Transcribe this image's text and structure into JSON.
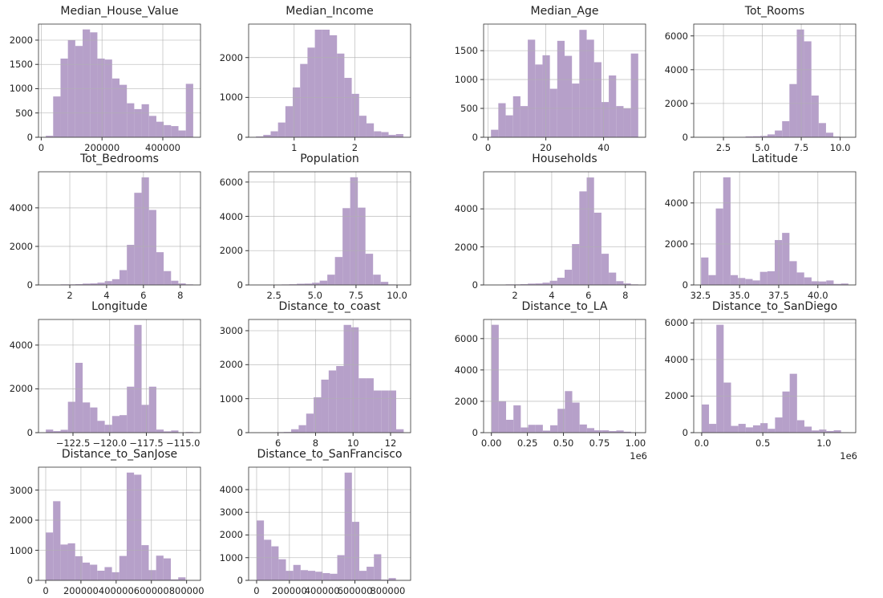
{
  "bar_color": "#b6a0c9",
  "chart_data": [
    {
      "type": "bar",
      "title": "Median_House_Value",
      "bin_range": [
        15000,
        500000
      ],
      "xlim": [
        -9000,
        524000
      ],
      "ylim": [
        0,
        2330
      ],
      "values": [
        30,
        840,
        1620,
        2000,
        1880,
        2220,
        2160,
        1620,
        1600,
        1210,
        1080,
        700,
        580,
        680,
        440,
        320,
        250,
        230,
        140,
        1100
      ],
      "xticks": [
        0,
        200000,
        400000
      ],
      "xtick_labels": [
        "0",
        "200000",
        "400000"
      ],
      "yticks": [
        0,
        500,
        1000,
        1500,
        2000
      ],
      "ytick_labels": [
        "0",
        "500",
        "1000",
        "1500",
        "2000"
      ],
      "grid": true
    },
    {
      "type": "bar",
      "title": "Median_Income",
      "bin_range": [
        0.37,
        2.8
      ],
      "xlim": [
        0.25,
        2.92
      ],
      "ylim": [
        0,
        2840
      ],
      "values": [
        20,
        60,
        150,
        370,
        780,
        1250,
        1840,
        2250,
        2700,
        2700,
        2560,
        2100,
        1490,
        1090,
        540,
        350,
        150,
        130,
        60,
        80
      ],
      "xticks": [
        1,
        2
      ],
      "xtick_labels": [
        "1",
        "2"
      ],
      "yticks": [
        0,
        1000,
        2000
      ],
      "ytick_labels": [
        "0",
        "1000",
        "2000"
      ],
      "grid": true
    },
    {
      "type": "bar",
      "title": "Median_Age",
      "bin_range": [
        1,
        52
      ],
      "xlim": [
        -1.55,
        54.55
      ],
      "ylim": [
        0,
        1960
      ],
      "values": [
        130,
        590,
        380,
        710,
        540,
        1690,
        1260,
        1420,
        840,
        1670,
        1410,
        930,
        1860,
        1690,
        1300,
        610,
        1070,
        540,
        500,
        1450
      ],
      "xticks": [
        0,
        20,
        40
      ],
      "xtick_labels": [
        "0",
        "20",
        "40"
      ],
      "yticks": [
        0,
        500,
        1000,
        1500
      ],
      "ytick_labels": [
        "0",
        "500",
        "1000",
        "1500"
      ],
      "grid": true
    },
    {
      "type": "bar",
      "title": "Tot_Rooms",
      "bin_range": [
        1.1,
        10.5
      ],
      "xlim": [
        0.59,
        11.0
      ],
      "ylim": [
        0,
        6700
      ],
      "values": [
        2,
        0,
        2,
        5,
        8,
        15,
        50,
        60,
        80,
        170,
        400,
        950,
        3150,
        6380,
        5680,
        2470,
        840,
        270,
        40,
        10
      ],
      "xticks": [
        2.5,
        5,
        7.5,
        10
      ],
      "xtick_labels": [
        "2.5",
        "5.0",
        "7.5",
        "10.0"
      ],
      "yticks": [
        0,
        2000,
        4000,
        6000
      ],
      "ytick_labels": [
        "0",
        "2000",
        "4000",
        "6000"
      ],
      "grid": true
    },
    {
      "type": "bar",
      "title": "Tot_Bedrooms",
      "bin_range": [
        0.7,
        8.7
      ],
      "xlim": [
        0.3,
        9.1
      ],
      "ylim": [
        0,
        5870
      ],
      "values": [
        2,
        0,
        30,
        30,
        40,
        70,
        80,
        120,
        200,
        300,
        770,
        2080,
        4780,
        5580,
        3890,
        1700,
        720,
        220,
        80,
        30
      ],
      "xticks": [
        2,
        4,
        6,
        8
      ],
      "xtick_labels": [
        "2",
        "4",
        "6",
        "8"
      ],
      "yticks": [
        0,
        2000,
        4000
      ],
      "ytick_labels": [
        "0",
        "2000",
        "4000"
      ],
      "grid": true
    },
    {
      "type": "bar",
      "title": "Population",
      "bin_range": [
        1.1,
        10.4
      ],
      "xlim": [
        0.95,
        10.83
      ],
      "ylim": [
        0,
        6600
      ],
      "values": [
        2,
        5,
        10,
        20,
        30,
        40,
        70,
        80,
        130,
        250,
        600,
        1630,
        4480,
        6280,
        4510,
        1820,
        600,
        180,
        30,
        5
      ],
      "xticks": [
        2.5,
        5,
        7.5,
        10
      ],
      "xtick_labels": [
        "2.5",
        "5.0",
        "7.5",
        "10.0"
      ],
      "yticks": [
        0,
        2000,
        4000,
        6000
      ],
      "ytick_labels": [
        "0",
        "2000",
        "4000",
        "6000"
      ],
      "grid": true
    },
    {
      "type": "bar",
      "title": "Households",
      "bin_range": [
        0.7,
        8.7
      ],
      "xlim": [
        0.3,
        9.1
      ],
      "ylim": [
        0,
        5950
      ],
      "values": [
        2,
        0,
        30,
        30,
        40,
        70,
        80,
        120,
        220,
        380,
        800,
        2150,
        4920,
        5650,
        3800,
        1640,
        650,
        200,
        80,
        30
      ],
      "xticks": [
        2,
        4,
        6,
        8
      ],
      "xtick_labels": [
        "2",
        "4",
        "6",
        "8"
      ],
      "yticks": [
        0,
        2000,
        4000
      ],
      "ytick_labels": [
        "0",
        "2000",
        "4000"
      ],
      "grid": true
    },
    {
      "type": "bar",
      "title": "Latitude",
      "bin_range": [
        32.54,
        41.95
      ],
      "xlim": [
        32.07,
        42.42
      ],
      "ylim": [
        0,
        5520
      ],
      "values": [
        1340,
        480,
        3730,
        5250,
        480,
        340,
        290,
        220,
        640,
        670,
        2190,
        2540,
        1160,
        610,
        370,
        180,
        170,
        220,
        50,
        70
      ],
      "xticks": [
        32.5,
        35,
        37.5,
        40
      ],
      "xtick_labels": [
        "32.5",
        "35.0",
        "37.5",
        "40.0"
      ],
      "yticks": [
        0,
        2000,
        4000
      ],
      "ytick_labels": [
        "0",
        "2000",
        "4000"
      ],
      "grid": true
    },
    {
      "type": "bar",
      "title": "Longitude",
      "bin_range": [
        -124.35,
        -114.31
      ],
      "xlim": [
        -124.85,
        -113.81
      ],
      "ylim": [
        0,
        5170
      ],
      "values": [
        140,
        70,
        130,
        1410,
        3190,
        1380,
        1150,
        540,
        360,
        760,
        800,
        2100,
        4920,
        1270,
        2100,
        140,
        60,
        100,
        10,
        30
      ],
      "xticks": [
        -122.5,
        -120,
        -117.5,
        -115
      ],
      "xtick_labels": [
        "−122.5",
        "−120.0",
        "−117.5",
        "−115.0"
      ],
      "yticks": [
        0,
        2000,
        4000
      ],
      "ytick_labels": [
        "0",
        "2000",
        "4000"
      ],
      "grid": true
    },
    {
      "type": "bar",
      "title": "Distance_to_coast",
      "bin_range": [
        4.7,
        12.7
      ],
      "xlim": [
        4.43,
        13.07
      ],
      "ylim": [
        0,
        3330
      ],
      "values": [
        1,
        0,
        2,
        15,
        20,
        100,
        220,
        560,
        1040,
        1560,
        1830,
        1960,
        3170,
        3100,
        1600,
        1600,
        1240,
        1240,
        1240,
        100
      ],
      "xticks": [
        6,
        8,
        10,
        12
      ],
      "xtick_labels": [
        "6",
        "8",
        "10",
        "12"
      ],
      "yticks": [
        0,
        1000,
        2000,
        3000
      ],
      "ytick_labels": [
        "0",
        "1000",
        "2000",
        "3000"
      ],
      "grid": true
    },
    {
      "type": "bar",
      "title": "Distance_to_LA",
      "bin_range": [
        0,
        1.02
      ],
      "xlim": [
        -0.054,
        1.07
      ],
      "ylim": [
        0,
        7220
      ],
      "values": [
        6880,
        2000,
        820,
        1740,
        330,
        500,
        500,
        130,
        470,
        1520,
        2650,
        1920,
        520,
        290,
        150,
        150,
        100,
        140,
        60,
        20
      ],
      "xticks": [
        0,
        0.25,
        0.5,
        0.75,
        1.0
      ],
      "xtick_labels": [
        "0.00",
        "0.25",
        "0.50",
        "0.75",
        "1.00"
      ],
      "x_offset_label": "1e6",
      "yticks": [
        0,
        2000,
        4000,
        6000
      ],
      "ytick_labels": [
        "0",
        "2000",
        "4000",
        "6000"
      ],
      "grid": true
    },
    {
      "type": "bar",
      "title": "Distance_to_SanDiego",
      "bin_range": [
        0,
        1.2
      ],
      "xlim": [
        -0.065,
        1.26
      ],
      "ylim": [
        0,
        6190
      ],
      "values": [
        1540,
        480,
        5900,
        2740,
        370,
        480,
        290,
        400,
        520,
        210,
        830,
        2250,
        3220,
        680,
        330,
        120,
        170,
        90,
        130,
        20
      ],
      "xticks": [
        0,
        0.5,
        1.0
      ],
      "xtick_labels": [
        "0.0",
        "0.5",
        "1.0"
      ],
      "x_offset_label": "1e6",
      "yticks": [
        0,
        2000,
        4000,
        6000
      ],
      "ytick_labels": [
        "0",
        "2000",
        "4000",
        "6000"
      ],
      "grid": true
    },
    {
      "type": "bar",
      "title": "Distance_to_SanJose",
      "bin_range": [
        0,
        836000
      ],
      "xlim": [
        -41000,
        879000
      ],
      "ylim": [
        0,
        3760
      ],
      "values": [
        1590,
        2630,
        1190,
        1230,
        800,
        590,
        520,
        320,
        440,
        270,
        810,
        3580,
        3510,
        1170,
        340,
        820,
        730,
        30,
        100,
        0
      ],
      "xticks": [
        0,
        200000,
        400000,
        600000,
        800000
      ],
      "xtick_labels": [
        "0",
        "200000",
        "400000",
        "600000",
        "800000"
      ],
      "yticks": [
        0,
        1000,
        2000,
        3000
      ],
      "ytick_labels": [
        "0",
        "1000",
        "2000",
        "3000"
      ],
      "grid": true
    },
    {
      "type": "bar",
      "title": "Distance_to_SanFrancisco",
      "bin_range": [
        0,
        895000
      ],
      "xlim": [
        -48800,
        940000
      ],
      "ylim": [
        0,
        4990
      ],
      "values": [
        2640,
        1790,
        1500,
        930,
        420,
        680,
        450,
        420,
        380,
        320,
        290,
        1110,
        4750,
        2580,
        420,
        600,
        1150,
        30,
        100,
        0
      ],
      "xticks": [
        0,
        200000,
        400000,
        600000,
        800000
      ],
      "xtick_labels": [
        "0",
        "200000",
        "400000",
        "600000",
        "800000"
      ],
      "yticks": [
        0,
        1000,
        2000,
        3000,
        4000
      ],
      "ytick_labels": [
        "0",
        "1000",
        "2000",
        "3000",
        "4000"
      ],
      "grid": true
    }
  ]
}
